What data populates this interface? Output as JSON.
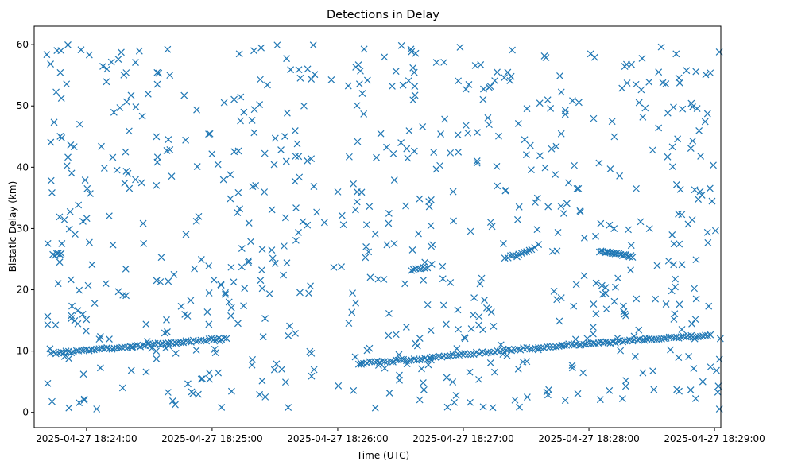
{
  "chart_data": {
    "type": "scatter",
    "title": "Detections in Delay",
    "xlabel": "Time (UTC)",
    "ylabel": "Bistatic Delay (km)",
    "x_start": "2025-04-27 18:23:40",
    "x_end": "2025-04-27 18:29:03",
    "xlim": [
      "2025-04-27 18:23:35",
      "2025-04-27 18:29:03"
    ],
    "ylim": [
      -2.5,
      63
    ],
    "x_ticks": [
      "2025-04-27 18:24:00",
      "2025-04-27 18:25:00",
      "2025-04-27 18:26:00",
      "2025-04-27 18:27:00",
      "2025-04-27 18:28:00",
      "2025-04-27 18:29:00"
    ],
    "y_ticks": [
      0,
      10,
      20,
      30,
      40,
      50,
      60
    ],
    "marker": "x",
    "series": [
      {
        "color": "#1f77b4"
      }
    ],
    "tracks": [
      {
        "start": "2025-04-27 18:23:43",
        "end": "2025-04-27 18:25:07",
        "y_start": 9.6,
        "y_end": 12.1,
        "count": 70
      },
      {
        "start": "2025-04-27 18:26:10",
        "end": "2025-04-27 18:26:44",
        "y_start": 8.0,
        "y_end": 8.8,
        "count": 28
      },
      {
        "start": "2025-04-27 18:26:44",
        "end": "2025-04-27 18:27:47",
        "y_start": 9.0,
        "y_end": 10.9,
        "count": 46
      },
      {
        "start": "2025-04-27 18:27:47",
        "end": "2025-04-27 18:28:58",
        "y_start": 10.9,
        "y_end": 12.6,
        "count": 62
      },
      {
        "start": "2025-04-27 18:28:05",
        "end": "2025-04-27 18:28:21",
        "y_start": 26.2,
        "y_end": 25.4,
        "count": 20
      },
      {
        "start": "2025-04-27 18:27:20",
        "end": "2025-04-27 18:27:34",
        "y_start": 25.2,
        "y_end": 26.8,
        "count": 12
      },
      {
        "start": "2025-04-27 18:26:35",
        "end": "2025-04-27 18:26:43",
        "y_start": 23.3,
        "y_end": 23.7,
        "count": 8
      },
      {
        "start": "2025-04-27 18:23:44",
        "end": "2025-04-27 18:23:48",
        "y_start": 25.7,
        "y_end": 25.8,
        "count": 6
      }
    ],
    "clutter": {
      "count": 700,
      "y_range": [
        0.5,
        60
      ],
      "gap": [
        "2025-04-27 18:25:50",
        "2025-04-27 18:26:05"
      ]
    },
    "legend": "none",
    "grid": false
  }
}
